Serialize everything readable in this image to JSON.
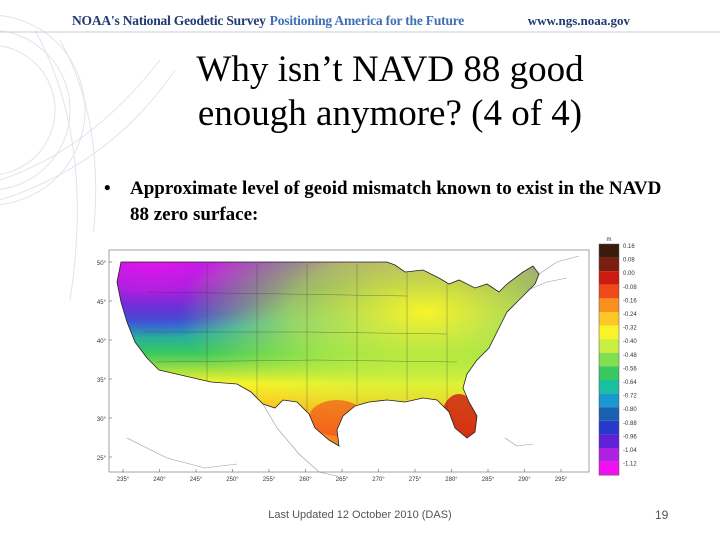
{
  "header": {
    "org_name": "NOAA's National Geodetic Survey",
    "tagline": "Positioning America for the Future",
    "url": "www.ngs.noaa.gov"
  },
  "slide": {
    "title_line1": "Why isn’t NAVD 88 good",
    "title_line2": "enough anymore? (4 of 4)",
    "bullet_marker": "•",
    "bullet_text": "Approximate level of geoid mismatch known to exist in the NAVD 88 zero surface:"
  },
  "map": {
    "lat_labels": [
      "50°",
      "45°",
      "40°",
      "35°",
      "30°",
      "25°"
    ],
    "lon_labels": [
      "235°",
      "240°",
      "245°",
      "250°",
      "255°",
      "260°",
      "265°",
      "270°",
      "275°",
      "280°",
      "285°",
      "290°",
      "295°"
    ],
    "legend_unit": "m",
    "legend_values": [
      "0.16",
      "0.08",
      "0.00",
      "-0.08",
      "-0.16",
      "-0.24",
      "-0.32",
      "-0.40",
      "-0.48",
      "-0.56",
      "-0.64",
      "-0.72",
      "-0.80",
      "-0.88",
      "-0.96",
      "-1.04",
      "-1.12"
    ],
    "legend_colors": [
      "#3b1c0c",
      "#7a1e10",
      "#cc1a10",
      "#f04818",
      "#f89020",
      "#fcc828",
      "#f8f428",
      "#c8f040",
      "#80e050",
      "#38c860",
      "#18c0a0",
      "#1a98d0",
      "#1a60b0",
      "#2838c8",
      "#6020d8",
      "#b020e0",
      "#f010f0"
    ]
  },
  "footer": {
    "updated": "Last Updated 12 October 2010 (DAS)",
    "page_number": "19"
  }
}
